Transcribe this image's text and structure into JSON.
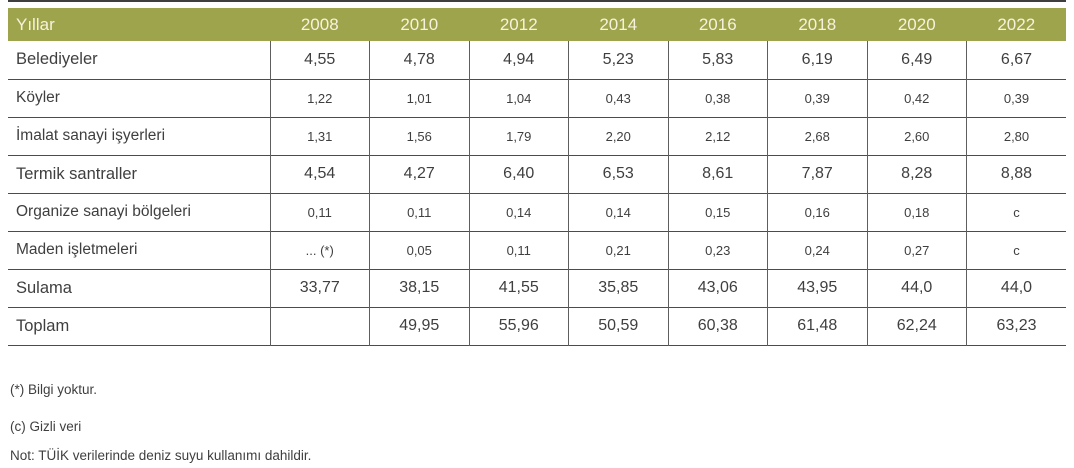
{
  "table": {
    "header": {
      "label": "Yıllar",
      "years": [
        "2008",
        "2010",
        "2012",
        "2014",
        "2016",
        "2018",
        "2020",
        "2022"
      ]
    },
    "rows": [
      {
        "label": "Belediyeler",
        "size": "lg",
        "values": [
          "4,55",
          "4,78",
          "4,94",
          "5,23",
          "5,83",
          "6,19",
          "6,49",
          "6,67"
        ]
      },
      {
        "label": "Köyler",
        "size": "sm",
        "values": [
          "1,22",
          "1,01",
          "1,04",
          "0,43",
          "0,38",
          "0,39",
          "0,42",
          "0,39"
        ]
      },
      {
        "label": "İmalat sanayi işyerleri",
        "size": "sm",
        "values": [
          "1,31",
          "1,56",
          "1,79",
          "2,20",
          "2,12",
          "2,68",
          "2,60",
          "2,80"
        ]
      },
      {
        "label": "Termik santraller",
        "size": "lg",
        "values": [
          "4,54",
          "4,27",
          "6,40",
          "6,53",
          "8,61",
          "7,87",
          "8,28",
          "8,88"
        ]
      },
      {
        "label": "Organize sanayi bölgeleri",
        "size": "sm",
        "values": [
          "0,11",
          "0,11",
          "0,14",
          "0,14",
          "0,15",
          "0,16",
          "0,18",
          "c"
        ]
      },
      {
        "label": "Maden işletmeleri",
        "size": "sm",
        "values": [
          "... (*)",
          "0,05",
          "0,11",
          "0,21",
          "0,23",
          "0,24",
          "0,27",
          "c"
        ]
      },
      {
        "label": "Sulama",
        "size": "lg",
        "values": [
          "33,77",
          "38,15",
          "41,55",
          "35,85",
          "43,06",
          "43,95",
          "44,0",
          "44,0"
        ]
      },
      {
        "label": "Toplam",
        "size": "lg",
        "values": [
          "",
          "49,95",
          "55,96",
          "50,59",
          "60,38",
          "61,48",
          "62,24",
          "63,23"
        ]
      }
    ]
  },
  "notes": [
    "(*) Bilgi yoktur.",
    "(c) Gizli veri",
    "Not: TÜİK verilerinde deniz suyu kullanımı dahildir."
  ],
  "colors": {
    "header_bg": "#9ea44b",
    "header_text": "#f6f2de",
    "body_text": "#3f3f3f",
    "border_horizontal": "#4c4c4c",
    "border_vertical": "#5e5e5e",
    "top_rule": "#3e3e3e"
  }
}
